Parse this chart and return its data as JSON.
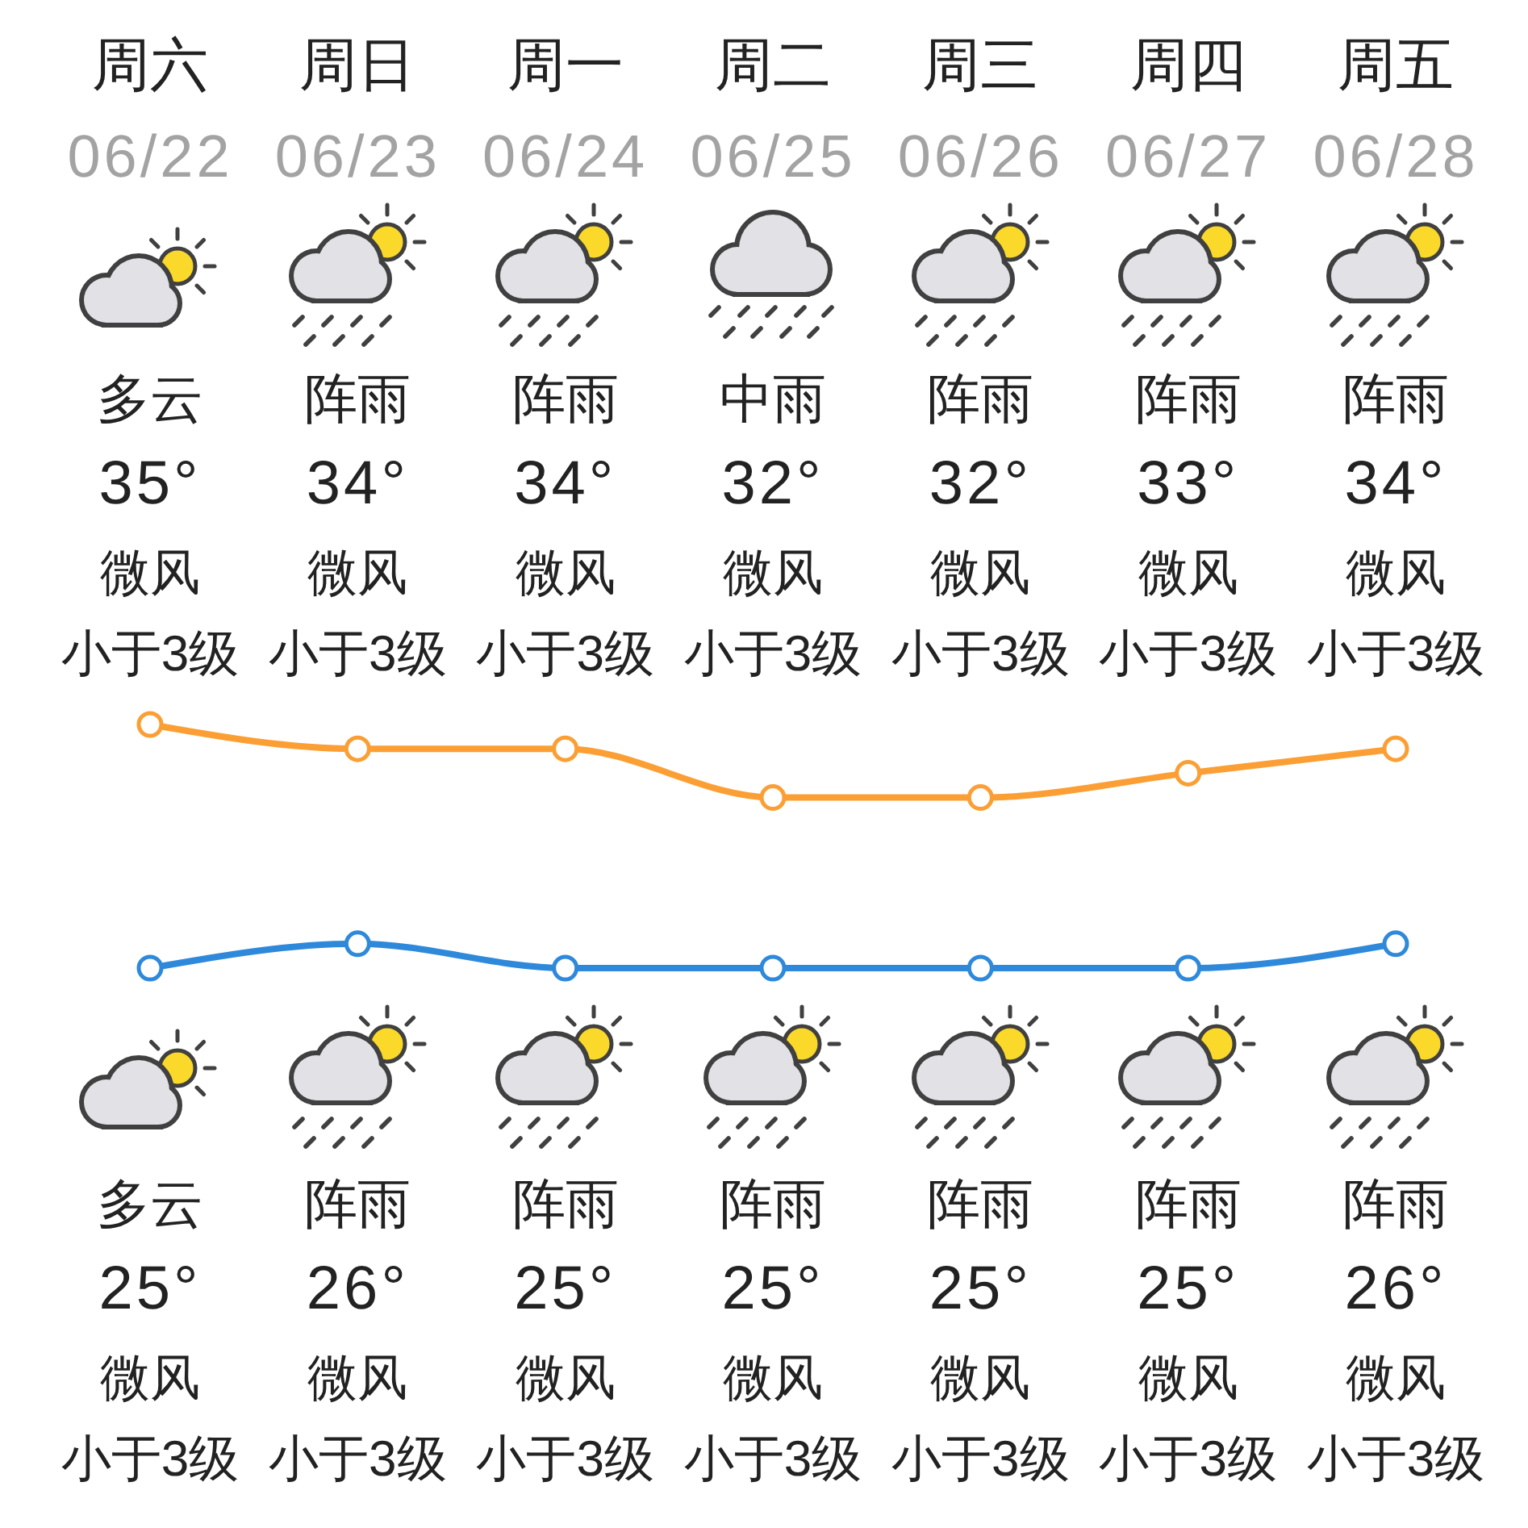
{
  "chart_data": {
    "type": "line",
    "categories": [
      "周六",
      "周日",
      "周一",
      "周二",
      "周三",
      "周四",
      "周五"
    ],
    "series": [
      {
        "color": "#fb9f35",
        "values": [
          35,
          34,
          34,
          32,
          32,
          33,
          34
        ],
        "value_labels": [
          "35°",
          "34°",
          "34°",
          "32°",
          "32°",
          "33°",
          "34°"
        ]
      },
      {
        "color": "#2f89da",
        "values": [
          25,
          26,
          25,
          25,
          25,
          25,
          26
        ],
        "value_labels": [
          "25°",
          "26°",
          "25°",
          "25°",
          "25°",
          "25°",
          "26°"
        ]
      }
    ],
    "marker": "circle",
    "line_style": "solid",
    "annotations": [
      "06/22",
      "06/23",
      "06/24",
      "06/25",
      "06/26",
      "06/27",
      "06/28",
      "多云",
      "微风",
      "小于3级",
      "阵雨",
      "微风",
      "小于3级",
      "阵雨",
      "微风",
      "小于3级",
      "中雨",
      "微风",
      "小于3级",
      "阵雨",
      "微风",
      "小于3级",
      "阵雨",
      "微风",
      "小于3级",
      "阵雨",
      "微风",
      "小于3级",
      "多云",
      "微风",
      "小于3级",
      "阵雨",
      "微风",
      "小于3级",
      "阵雨",
      "微风",
      "小于3级",
      "阵雨",
      "微风",
      "小于3级",
      "阵雨",
      "微风",
      "小于3级",
      "阵雨",
      "微风",
      "小于3级",
      "阵雨",
      "微风",
      "小于3级"
    ]
  }
}
